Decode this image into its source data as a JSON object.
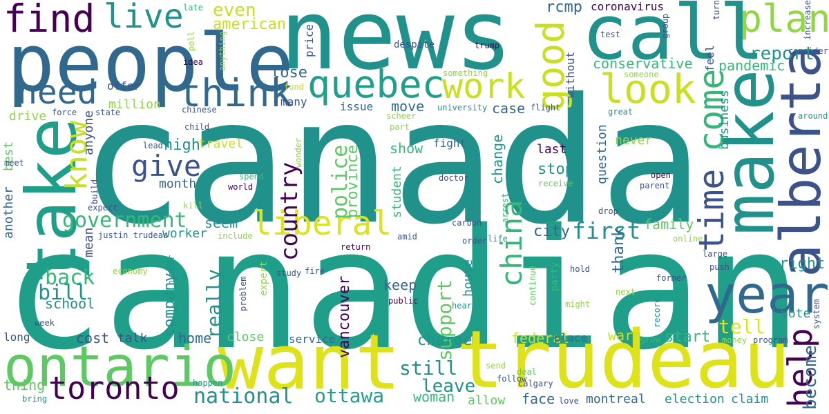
{
  "palette": {
    "purple": "#440154",
    "indigo": "#3b528b",
    "blue": "#31688e",
    "teal": "#21918c",
    "teal2": "#1f9e89",
    "green": "#35b779",
    "green2": "#5ec962",
    "lime": "#90d743",
    "yellow": "#dde318",
    "yellow2": "#c8e020"
  },
  "words": [
    {
      "text": "canada",
      "c": "teal"
    },
    {
      "text": "canadian",
      "c": "teal2"
    },
    {
      "text": "news",
      "c": "teal"
    },
    {
      "text": "people",
      "c": "blue"
    },
    {
      "text": "call",
      "c": "teal"
    },
    {
      "text": "make",
      "c": "teal"
    },
    {
      "text": "want",
      "c": "yellow"
    },
    {
      "text": "trudeau",
      "c": "yellow"
    },
    {
      "text": "take",
      "c": "teal2"
    },
    {
      "text": "ontario",
      "c": "green2"
    },
    {
      "text": "alberta",
      "c": "indigo"
    },
    {
      "text": "year",
      "c": "blue"
    },
    {
      "text": "find",
      "c": "purple"
    },
    {
      "text": "need",
      "c": "blue"
    },
    {
      "text": "live",
      "c": "teal"
    },
    {
      "text": "think",
      "c": "blue"
    },
    {
      "text": "quebec",
      "c": "teal2"
    },
    {
      "text": "work",
      "c": "yellow2"
    },
    {
      "text": "look",
      "c": "yellow2"
    },
    {
      "text": "plan",
      "c": "lime"
    },
    {
      "text": "report",
      "c": "teal"
    },
    {
      "text": "good",
      "c": "yellow2"
    },
    {
      "text": "come",
      "c": "green"
    },
    {
      "text": "time",
      "c": "indigo"
    },
    {
      "text": "help",
      "c": "purple"
    },
    {
      "text": "china",
      "c": "green"
    },
    {
      "text": "liberal",
      "c": "yellow"
    },
    {
      "text": "give",
      "c": "indigo"
    },
    {
      "text": "know",
      "c": "yellow2"
    },
    {
      "text": "government",
      "c": "green"
    },
    {
      "text": "toronto",
      "c": "purple"
    },
    {
      "text": "national",
      "c": "teal"
    },
    {
      "text": "ottawa",
      "c": "teal2"
    },
    {
      "text": "even",
      "c": "yellow2"
    },
    {
      "text": "american",
      "c": "yellow2"
    },
    {
      "text": "rcmp",
      "c": "blue"
    },
    {
      "text": "coronavirus",
      "c": "purple"
    },
    {
      "text": "conservative",
      "c": "green"
    },
    {
      "text": "pandemic",
      "c": "green"
    },
    {
      "text": "lose",
      "c": "blue"
    },
    {
      "text": "first",
      "c": "teal"
    },
    {
      "text": "back",
      "c": "green"
    },
    {
      "text": "bill",
      "c": "teal"
    },
    {
      "text": "school",
      "c": "teal"
    },
    {
      "text": "tell",
      "c": "yellow"
    },
    {
      "text": "right",
      "c": "teal"
    },
    {
      "text": "country",
      "c": "purple"
    },
    {
      "text": "police",
      "c": "green2"
    },
    {
      "text": "province",
      "c": "green2"
    },
    {
      "text": "support",
      "c": "green2"
    },
    {
      "text": "really",
      "c": "teal"
    },
    {
      "text": "vancouver",
      "c": "purple"
    },
    {
      "text": "keep",
      "c": "blue"
    },
    {
      "text": "charge",
      "c": "teal"
    },
    {
      "text": "still",
      "c": "teal"
    },
    {
      "text": "leave",
      "c": "teal"
    },
    {
      "text": "woman",
      "c": "green"
    },
    {
      "text": "federal",
      "c": "yellow2"
    },
    {
      "text": "place",
      "c": "blue"
    },
    {
      "text": "warn",
      "c": "yellow2"
    },
    {
      "text": "start",
      "c": "green"
    },
    {
      "text": "face",
      "c": "blue"
    },
    {
      "text": "montreal",
      "c": "blue"
    },
    {
      "text": "election",
      "c": "teal"
    },
    {
      "text": "claim",
      "c": "teal"
    },
    {
      "text": "become",
      "c": "blue"
    },
    {
      "text": "vote",
      "c": "teal"
    },
    {
      "text": "family",
      "c": "green2"
    },
    {
      "text": "city",
      "c": "blue"
    },
    {
      "text": "thank",
      "c": "blue"
    },
    {
      "text": "seem",
      "c": "teal"
    },
    {
      "text": "million",
      "c": "lime"
    },
    {
      "text": "month",
      "c": "blue"
    },
    {
      "text": "high",
      "c": "teal"
    },
    {
      "text": "travel",
      "c": "yellow2"
    },
    {
      "text": "show",
      "c": "green"
    },
    {
      "text": "move",
      "c": "blue"
    },
    {
      "text": "issue",
      "c": "blue"
    },
    {
      "text": "case",
      "c": "blue"
    },
    {
      "text": "change",
      "c": "teal"
    },
    {
      "text": "last",
      "c": "purple"
    },
    {
      "text": "stop",
      "c": "teal"
    },
    {
      "text": "question",
      "c": "blue"
    },
    {
      "text": "never",
      "c": "lime"
    },
    {
      "text": "business",
      "c": "teal"
    },
    {
      "text": "fight",
      "c": "blue"
    },
    {
      "text": "student",
      "c": "green"
    },
    {
      "text": "company",
      "c": "teal"
    },
    {
      "text": "home",
      "c": "blue"
    },
    {
      "text": "cost",
      "c": "indigo"
    },
    {
      "text": "talk",
      "c": "indigo"
    },
    {
      "text": "close",
      "c": "green2"
    },
    {
      "text": "service",
      "c": "blue"
    },
    {
      "text": "long",
      "c": "indigo"
    },
    {
      "text": "thing",
      "c": "green2"
    },
    {
      "text": "allow",
      "c": "green2"
    },
    {
      "text": "drive",
      "c": "lime"
    },
    {
      "text": "worker",
      "c": "teal"
    },
    {
      "text": "mean",
      "c": "indigo"
    },
    {
      "text": "anyone",
      "c": "indigo"
    },
    {
      "text": "best",
      "c": "green2"
    },
    {
      "text": "another",
      "c": "blue"
    },
    {
      "text": "many",
      "c": "indigo"
    },
    {
      "text": "without",
      "c": "indigo"
    },
    {
      "text": "feel",
      "c": "indigo"
    },
    {
      "text": "house",
      "c": "teal"
    },
    {
      "text": "price",
      "c": "indigo"
    },
    {
      "text": "offer",
      "c": "indigo"
    },
    {
      "text": "state",
      "c": "indigo"
    },
    {
      "text": "force",
      "c": "indigo"
    },
    {
      "text": "chinese",
      "c": "indigo"
    },
    {
      "text": "child",
      "c": "indigo"
    },
    {
      "text": "lead",
      "c": "indigo"
    },
    {
      "text": "meet",
      "c": "indigo"
    },
    {
      "text": "expect",
      "c": "indigo"
    },
    {
      "text": "build",
      "c": "indigo"
    },
    {
      "text": "kill",
      "c": "lime"
    },
    {
      "text": "justin trudeau",
      "c": "indigo"
    },
    {
      "text": "include",
      "c": "lime"
    },
    {
      "text": "economy",
      "c": "lime"
    },
    {
      "text": "number",
      "c": "teal"
    },
    {
      "text": "expert",
      "c": "lime"
    },
    {
      "text": "problem",
      "c": "indigo"
    },
    {
      "text": "study",
      "c": "indigo"
    },
    {
      "text": "fire",
      "c": "indigo"
    },
    {
      "text": "public",
      "c": "purple"
    },
    {
      "text": "amid",
      "c": "indigo"
    },
    {
      "text": "return",
      "c": "purple"
    },
    {
      "text": "carbon",
      "c": "indigo"
    },
    {
      "text": "order",
      "c": "indigo"
    },
    {
      "text": "life",
      "c": "teal"
    },
    {
      "text": "hear",
      "c": "teal"
    },
    {
      "text": "continue",
      "c": "green2"
    },
    {
      "text": "party",
      "c": "green"
    },
    {
      "text": "might",
      "c": "lime"
    },
    {
      "text": "hold",
      "c": "indigo"
    },
    {
      "text": "former",
      "c": "indigo"
    },
    {
      "text": "next",
      "c": "lime"
    },
    {
      "text": "record",
      "c": "teal"
    },
    {
      "text": "grow",
      "c": "green"
    },
    {
      "text": "push",
      "c": "indigo"
    },
    {
      "text": "large",
      "c": "indigo"
    },
    {
      "text": "online",
      "c": "lime"
    },
    {
      "text": "money",
      "c": "lime"
    },
    {
      "text": "program",
      "c": "indigo"
    },
    {
      "text": "system",
      "c": "indigo"
    },
    {
      "text": "increase",
      "c": "indigo"
    },
    {
      "text": "late",
      "c": "green"
    },
    {
      "text": "poll",
      "c": "lime"
    },
    {
      "text": "idea",
      "c": "purple"
    },
    {
      "text": "anything",
      "c": "lime"
    },
    {
      "text": "fund",
      "c": "yellow2"
    },
    {
      "text": "despite",
      "c": "indigo"
    },
    {
      "text": "something",
      "c": "lime"
    },
    {
      "text": "trump",
      "c": "purple"
    },
    {
      "text": "test",
      "c": "indigo"
    },
    {
      "text": "group",
      "c": "indigo"
    },
    {
      "text": "turn",
      "c": "indigo"
    },
    {
      "text": "consider",
      "c": "indigo"
    },
    {
      "text": "someone",
      "c": "lime"
    },
    {
      "text": "great",
      "c": "teal"
    },
    {
      "text": "flight",
      "c": "indigo"
    },
    {
      "text": "around",
      "c": "teal"
    },
    {
      "text": "university",
      "c": "teal"
    },
    {
      "text": "scheer",
      "c": "lime"
    },
    {
      "text": "part",
      "c": "lime"
    },
    {
      "text": "wonder",
      "c": "lime"
    },
    {
      "text": "doctor",
      "c": "indigo"
    },
    {
      "text": "spend",
      "c": "green"
    },
    {
      "text": "world",
      "c": "purple"
    },
    {
      "text": "receive",
      "c": "green2"
    },
    {
      "text": "arrest",
      "c": "green"
    },
    {
      "text": "open",
      "c": "purple"
    },
    {
      "text": "parent",
      "c": "indigo"
    },
    {
      "text": "drop",
      "c": "indigo"
    },
    {
      "text": "week",
      "c": "indigo"
    },
    {
      "text": "happen",
      "c": "teal"
    },
    {
      "text": "bring",
      "c": "teal"
    },
    {
      "text": "send",
      "c": "lime"
    },
    {
      "text": "deal",
      "c": "green2"
    },
    {
      "text": "follow",
      "c": "indigo"
    },
    {
      "text": "calgary",
      "c": "indigo"
    },
    {
      "text": "love",
      "c": "indigo"
    }
  ]
}
